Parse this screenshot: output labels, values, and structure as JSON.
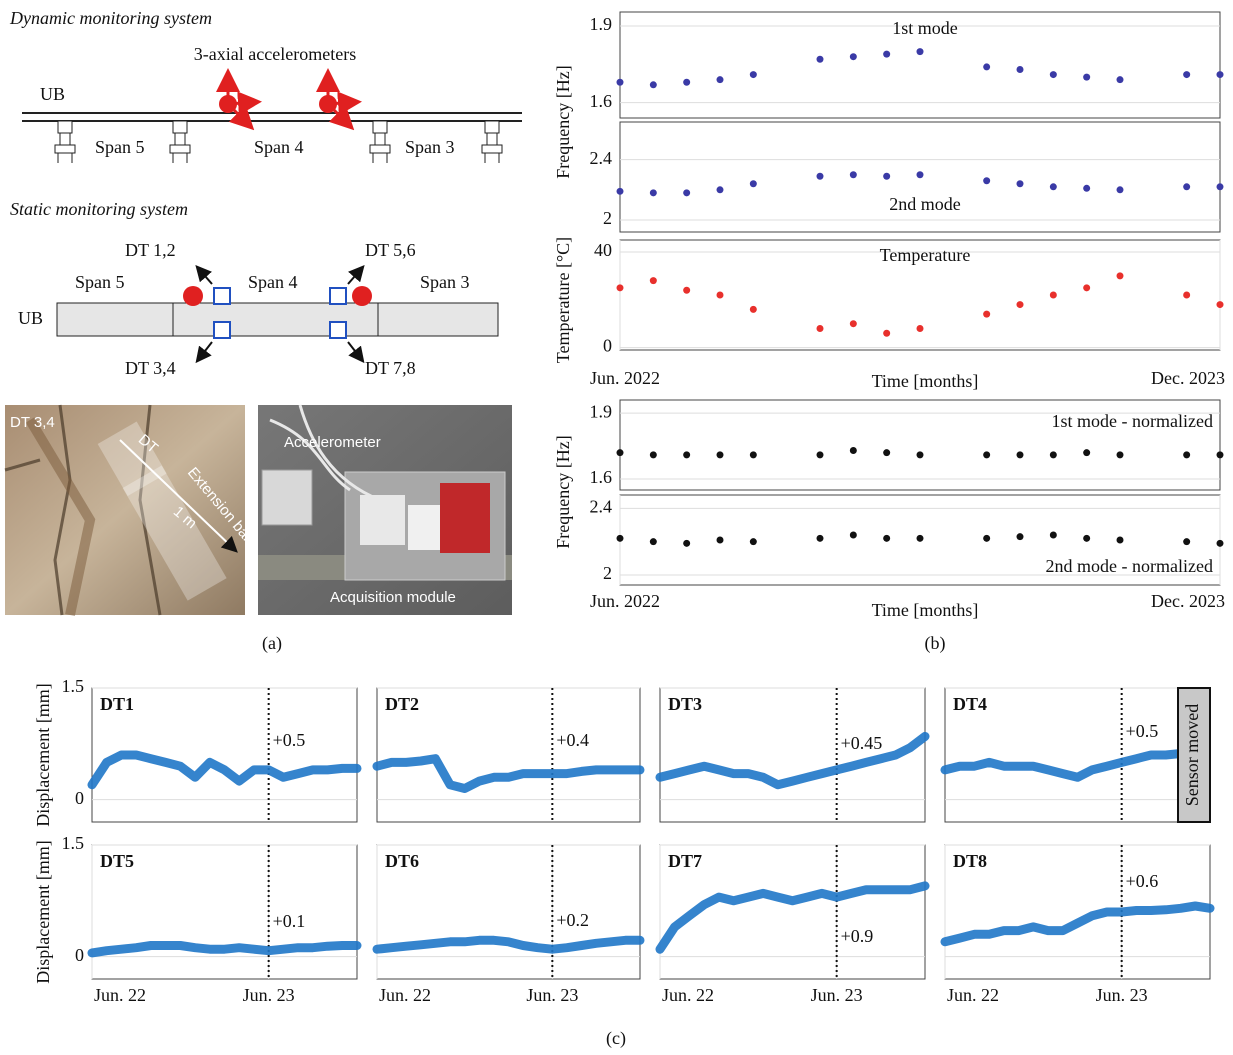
{
  "panel_a": {
    "dynamic_title": "Dynamic monitoring system",
    "accelerometers": "3-axial accelerometers",
    "ub_top": "UB",
    "span5_top": "Span 5",
    "span4_top": "Span 4",
    "span3_top": "Span 3",
    "static_title": "Static monitoring system",
    "dt12": "DT 1,2",
    "dt56": "DT 5,6",
    "dt34": "DT 3,4",
    "dt78": "DT 7,8",
    "ub_bottom": "UB",
    "span5_bottom": "Span 5",
    "span4_bottom": "Span 4",
    "span3_bottom": "Span 3",
    "photo1_label": "DT 3,4",
    "photo1_dt": "DT",
    "photo1_bar": "Extension bar",
    "photo1_length": "1 m",
    "photo2_accelerometer": "Accelerometer",
    "photo2_module": "Acquisition module"
  },
  "captions": [
    "(a)",
    "(b)",
    "(c)"
  ],
  "chart_data": [
    {
      "type": "scatter",
      "annotation": "1st mode",
      "ylabel": "Frequency [Hz]",
      "color": "#3a3aa6",
      "xlim": [
        "2022-06",
        "2023-12"
      ],
      "ylim": [
        1.54,
        1.955
      ],
      "yticks": [
        1.6,
        1.9
      ],
      "grid": true,
      "x": [
        "2022-06",
        "2022-07",
        "2022-08",
        "2022-09",
        "2022-10",
        "2022-11",
        "2022-12",
        "2023-01",
        "2023-02",
        "2023-03",
        "2023-04",
        "2023-05",
        "2023-06",
        "2023-07",
        "2023-08",
        "2023-09",
        "2023-10",
        "2023-11",
        "2023-12"
      ],
      "values": [
        1.68,
        1.67,
        1.68,
        1.69,
        1.71,
        null,
        1.77,
        1.78,
        1.79,
        1.8,
        null,
        1.74,
        1.73,
        1.71,
        1.7,
        1.69,
        null,
        1.71,
        1.71
      ]
    },
    {
      "type": "scatter",
      "annotation": "2nd mode",
      "color": "#3a3aa6",
      "xlim": [
        "2022-06",
        "2023-12"
      ],
      "ylim": [
        1.92,
        2.65
      ],
      "yticks": [
        2,
        2.4
      ],
      "grid": true,
      "x": [
        "2022-06",
        "2022-07",
        "2022-08",
        "2022-09",
        "2022-10",
        "2022-11",
        "2022-12",
        "2023-01",
        "2023-02",
        "2023-03",
        "2023-04",
        "2023-05",
        "2023-06",
        "2023-07",
        "2023-08",
        "2023-09",
        "2023-10",
        "2023-11",
        "2023-12"
      ],
      "values": [
        2.19,
        2.18,
        2.18,
        2.2,
        2.24,
        null,
        2.29,
        2.3,
        2.29,
        2.3,
        null,
        2.26,
        2.24,
        2.22,
        2.21,
        2.2,
        null,
        2.22,
        2.22
      ]
    },
    {
      "type": "scatter",
      "annotation": "Temperature",
      "ylabel": "Temperature [°C]",
      "xlabel": "Time [months]",
      "color": "#e8302c",
      "xlim": [
        "2022-06",
        "2023-12"
      ],
      "ylim": [
        -1,
        45
      ],
      "yticks": [
        0,
        40
      ],
      "grid": true,
      "xticks": [
        {
          "value": "2022-06",
          "label": "Jun. 2022"
        },
        {
          "value": "2023-12",
          "label": "Dec. 2023"
        }
      ],
      "x": [
        "2022-06",
        "2022-07",
        "2022-08",
        "2022-09",
        "2022-10",
        "2022-11",
        "2022-12",
        "2023-01",
        "2023-02",
        "2023-03",
        "2023-04",
        "2023-05",
        "2023-06",
        "2023-07",
        "2023-08",
        "2023-09",
        "2023-10",
        "2023-11",
        "2023-12"
      ],
      "values": [
        25,
        28,
        24,
        22,
        16,
        null,
        8,
        10,
        6,
        8,
        null,
        14,
        18,
        22,
        25,
        30,
        null,
        22,
        18
      ]
    },
    {
      "type": "scatter",
      "annotation": "1st mode - normalized",
      "ylabel": "Frequency [Hz]",
      "color": "#111111",
      "xlim": [
        "2022-06",
        "2023-12"
      ],
      "ylim": [
        1.55,
        1.96
      ],
      "yticks": [
        1.6,
        1.9
      ],
      "grid": true,
      "x": [
        "2022-06",
        "2022-07",
        "2022-08",
        "2022-09",
        "2022-10",
        "2022-11",
        "2022-12",
        "2023-01",
        "2023-02",
        "2023-03",
        "2023-04",
        "2023-05",
        "2023-06",
        "2023-07",
        "2023-08",
        "2023-09",
        "2023-10",
        "2023-11",
        "2023-12"
      ],
      "values": [
        1.72,
        1.71,
        1.71,
        1.71,
        1.71,
        null,
        1.71,
        1.73,
        1.72,
        1.71,
        null,
        1.71,
        1.71,
        1.71,
        1.72,
        1.71,
        null,
        1.71,
        1.71
      ]
    },
    {
      "type": "scatter",
      "annotation": "2nd mode - normalized",
      "xlabel": "Time [months]",
      "color": "#111111",
      "xlim": [
        "2022-06",
        "2023-12"
      ],
      "ylim": [
        1.94,
        2.48
      ],
      "yticks": [
        2.0,
        2.4
      ],
      "grid": true,
      "xticks": [
        {
          "value": "2022-06",
          "label": "Jun. 2022"
        },
        {
          "value": "2023-12",
          "label": "Dec. 2023"
        }
      ],
      "x": [
        "2022-06",
        "2022-07",
        "2022-08",
        "2022-09",
        "2022-10",
        "2022-11",
        "2022-12",
        "2023-01",
        "2023-02",
        "2023-03",
        "2023-04",
        "2023-05",
        "2023-06",
        "2023-07",
        "2023-08",
        "2023-09",
        "2023-10",
        "2023-11",
        "2023-12"
      ],
      "values": [
        2.22,
        2.2,
        2.19,
        2.21,
        2.2,
        null,
        2.22,
        2.24,
        2.22,
        2.22,
        null,
        2.22,
        2.23,
        2.24,
        2.22,
        2.21,
        null,
        2.2,
        2.19
      ]
    },
    {
      "type": "line",
      "annotation": "DT1",
      "note": "+0.5",
      "ylabel": "Displacement [mm]",
      "color": "#1f77c8",
      "xlim": [
        "2022-06",
        "2023-12"
      ],
      "ylim": [
        -0.3,
        1.5
      ],
      "yticks": [
        0,
        1.5
      ],
      "vline": "2023-06",
      "grid": true,
      "x": [
        "2022-06",
        "2022-07",
        "2022-08",
        "2022-09",
        "2022-10",
        "2022-11",
        "2022-12",
        "2023-01",
        "2023-02",
        "2023-03",
        "2023-04",
        "2023-05",
        "2023-06",
        "2023-07",
        "2023-08",
        "2023-09",
        "2023-10",
        "2023-11",
        "2023-12"
      ],
      "values": [
        0.2,
        0.5,
        0.6,
        0.6,
        0.55,
        0.5,
        0.45,
        0.3,
        0.5,
        0.4,
        0.25,
        0.4,
        0.4,
        0.3,
        0.35,
        0.4,
        0.4,
        0.42,
        0.42
      ]
    },
    {
      "type": "line",
      "annotation": "DT2",
      "note": "+0.4",
      "color": "#1f77c8",
      "xlim": [
        "2022-06",
        "2023-12"
      ],
      "ylim": [
        -0.3,
        1.5
      ],
      "yticks": [
        0,
        1.5
      ],
      "vline": "2023-06",
      "grid": true,
      "x": [
        "2022-06",
        "2022-07",
        "2022-08",
        "2022-09",
        "2022-10",
        "2022-11",
        "2022-12",
        "2023-01",
        "2023-02",
        "2023-03",
        "2023-04",
        "2023-05",
        "2023-06",
        "2023-07",
        "2023-08",
        "2023-09",
        "2023-10",
        "2023-11",
        "2023-12"
      ],
      "values": [
        0.45,
        0.5,
        0.5,
        0.52,
        0.55,
        0.2,
        0.15,
        0.25,
        0.3,
        0.3,
        0.35,
        0.35,
        0.35,
        0.35,
        0.38,
        0.4,
        0.4,
        0.4,
        0.4
      ]
    },
    {
      "type": "line",
      "annotation": "DT3",
      "note": "+0.45",
      "color": "#1f77c8",
      "xlim": [
        "2022-06",
        "2023-12"
      ],
      "ylim": [
        -0.3,
        1.5
      ],
      "yticks": [
        0,
        1.5
      ],
      "vline": "2023-06",
      "grid": true,
      "x": [
        "2022-06",
        "2022-07",
        "2022-08",
        "2022-09",
        "2022-10",
        "2022-11",
        "2022-12",
        "2023-01",
        "2023-02",
        "2023-03",
        "2023-04",
        "2023-05",
        "2023-06",
        "2023-07",
        "2023-08",
        "2023-09",
        "2023-10",
        "2023-11",
        "2023-12"
      ],
      "values": [
        0.3,
        0.35,
        0.4,
        0.45,
        0.4,
        0.35,
        0.35,
        0.3,
        0.2,
        0.25,
        0.3,
        0.35,
        0.4,
        0.45,
        0.5,
        0.55,
        0.6,
        0.7,
        0.85
      ]
    },
    {
      "type": "line",
      "annotation": "DT4",
      "note": "+0.5",
      "side_label": "Sensor moved",
      "color": "#1f77c8",
      "xlim": [
        "2022-06",
        "2023-12"
      ],
      "ylim": [
        -0.3,
        1.5
      ],
      "yticks": [
        0,
        1.5
      ],
      "vline": "2023-06",
      "grid": true,
      "x": [
        "2022-06",
        "2022-07",
        "2022-08",
        "2022-09",
        "2022-10",
        "2022-11",
        "2022-12",
        "2023-01",
        "2023-02",
        "2023-03",
        "2023-04",
        "2023-05",
        "2023-06",
        "2023-07",
        "2023-08",
        "2023-09",
        "2023-10",
        "2023-11",
        "2023-12"
      ],
      "values": [
        0.4,
        0.45,
        0.45,
        0.5,
        0.45,
        0.45,
        0.45,
        0.4,
        0.35,
        0.3,
        0.4,
        0.45,
        0.5,
        0.55,
        0.6,
        0.6,
        0.62,
        0.6,
        null
      ]
    },
    {
      "type": "line",
      "annotation": "DT5",
      "note": "+0.1",
      "ylabel": "Displacement [mm]",
      "color": "#1f77c8",
      "xlim": [
        "2022-06",
        "2023-12"
      ],
      "ylim": [
        -0.3,
        1.5
      ],
      "yticks": [
        0,
        1.5
      ],
      "vline": "2023-06",
      "grid": true,
      "xticks": [
        {
          "value": "2022-06",
          "label": "Jun. 22"
        },
        {
          "value": "2023-06",
          "label": "Jun. 23"
        }
      ],
      "x": [
        "2022-06",
        "2022-07",
        "2022-08",
        "2022-09",
        "2022-10",
        "2022-11",
        "2022-12",
        "2023-01",
        "2023-02",
        "2023-03",
        "2023-04",
        "2023-05",
        "2023-06",
        "2023-07",
        "2023-08",
        "2023-09",
        "2023-10",
        "2023-11",
        "2023-12"
      ],
      "values": [
        0.05,
        0.08,
        0.1,
        0.12,
        0.15,
        0.15,
        0.15,
        0.12,
        0.1,
        0.1,
        0.12,
        0.1,
        0.08,
        0.1,
        0.12,
        0.12,
        0.14,
        0.15,
        0.15
      ]
    },
    {
      "type": "line",
      "annotation": "DT6",
      "note": "+0.2",
      "color": "#1f77c8",
      "xlim": [
        "2022-06",
        "2023-12"
      ],
      "ylim": [
        -0.3,
        1.5
      ],
      "yticks": [
        0,
        1.5
      ],
      "vline": "2023-06",
      "grid": true,
      "xticks": [
        {
          "value": "2022-06",
          "label": "Jun. 22"
        },
        {
          "value": "2023-06",
          "label": "Jun. 23"
        }
      ],
      "x": [
        "2022-06",
        "2022-07",
        "2022-08",
        "2022-09",
        "2022-10",
        "2022-11",
        "2022-12",
        "2023-01",
        "2023-02",
        "2023-03",
        "2023-04",
        "2023-05",
        "2023-06",
        "2023-07",
        "2023-08",
        "2023-09",
        "2023-10",
        "2023-11",
        "2023-12"
      ],
      "values": [
        0.1,
        0.12,
        0.14,
        0.16,
        0.18,
        0.2,
        0.2,
        0.22,
        0.22,
        0.2,
        0.15,
        0.12,
        0.1,
        0.12,
        0.15,
        0.18,
        0.2,
        0.22,
        0.22
      ]
    },
    {
      "type": "line",
      "annotation": "DT7",
      "note": "+0.9",
      "color": "#1f77c8",
      "xlim": [
        "2022-06",
        "2023-12"
      ],
      "ylim": [
        -0.3,
        1.5
      ],
      "yticks": [
        0,
        1.5
      ],
      "vline": "2023-06",
      "grid": true,
      "xticks": [
        {
          "value": "2022-06",
          "label": "Jun. 22"
        },
        {
          "value": "2023-06",
          "label": "Jun. 23"
        }
      ],
      "x": [
        "2022-06",
        "2022-07",
        "2022-08",
        "2022-09",
        "2022-10",
        "2022-11",
        "2022-12",
        "2023-01",
        "2023-02",
        "2023-03",
        "2023-04",
        "2023-05",
        "2023-06",
        "2023-07",
        "2023-08",
        "2023-09",
        "2023-10",
        "2023-11",
        "2023-12"
      ],
      "values": [
        0.1,
        0.4,
        0.55,
        0.7,
        0.8,
        0.75,
        0.8,
        0.85,
        0.8,
        0.75,
        0.8,
        0.85,
        0.8,
        0.85,
        0.9,
        0.9,
        0.9,
        0.9,
        0.95
      ]
    },
    {
      "type": "line",
      "annotation": "DT8",
      "note": "+0.6",
      "color": "#1f77c8",
      "xlim": [
        "2022-06",
        "2023-12"
      ],
      "ylim": [
        -0.3,
        1.5
      ],
      "yticks": [
        0,
        1.5
      ],
      "vline": "2023-06",
      "grid": true,
      "xticks": [
        {
          "value": "2022-06",
          "label": "Jun. 22"
        },
        {
          "value": "2023-06",
          "label": "Jun. 23"
        }
      ],
      "x": [
        "2022-06",
        "2022-07",
        "2022-08",
        "2022-09",
        "2022-10",
        "2022-11",
        "2022-12",
        "2023-01",
        "2023-02",
        "2023-03",
        "2023-04",
        "2023-05",
        "2023-06",
        "2023-07",
        "2023-08",
        "2023-09",
        "2023-10",
        "2023-11",
        "2023-12"
      ],
      "values": [
        0.2,
        0.25,
        0.3,
        0.3,
        0.35,
        0.35,
        0.4,
        0.35,
        0.35,
        0.45,
        0.55,
        0.6,
        0.6,
        0.62,
        0.62,
        0.63,
        0.65,
        0.68,
        0.65
      ]
    }
  ]
}
